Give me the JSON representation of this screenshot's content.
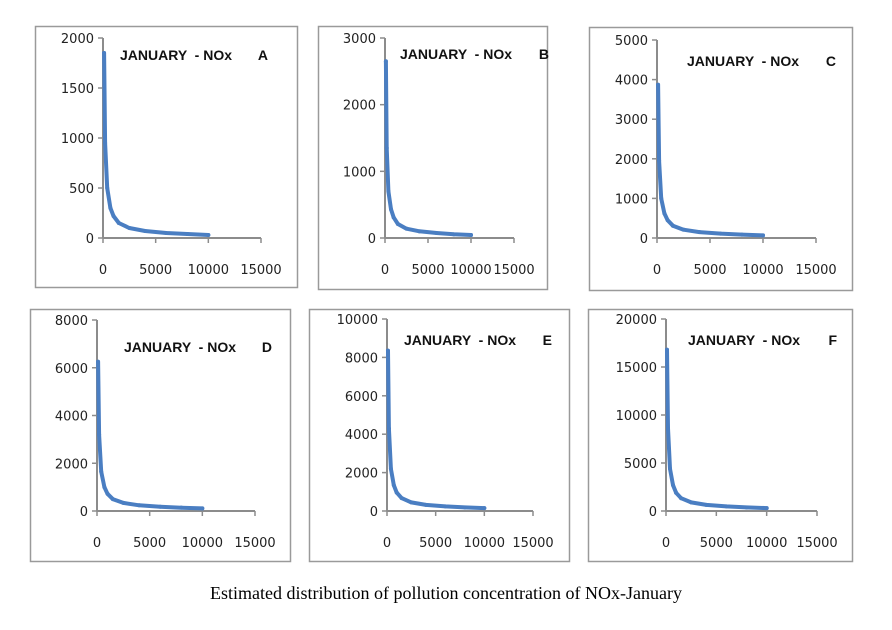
{
  "caption": "Estimated distribution of pollution concentration of NOx-January",
  "colors": {
    "series": "#4a7ec2",
    "axis": "#8c8c8c",
    "frame": "#9a9a9a"
  },
  "chart_data": [
    {
      "type": "line",
      "panel": "A",
      "title": "JANUARY  - NOx",
      "letter": "A",
      "xlim": [
        0,
        15000
      ],
      "ylim": [
        0,
        2000
      ],
      "xticks": [
        "0",
        "5000",
        "10000",
        "15000"
      ],
      "xtick_values": [
        0,
        5000,
        10000,
        15000
      ],
      "yticks": [
        "0",
        "500",
        "1000",
        "1500",
        "2000"
      ],
      "ytick_values": [
        0,
        500,
        1000,
        1500,
        2000
      ],
      "x": [
        100,
        200,
        400,
        700,
        1000,
        1500,
        2500,
        4000,
        6000,
        8000,
        10000
      ],
      "y": [
        1850,
        950,
        500,
        300,
        220,
        150,
        100,
        70,
        50,
        40,
        30
      ]
    },
    {
      "type": "line",
      "panel": "B",
      "title": "JANUARY  - NOx",
      "letter": "B",
      "xlim": [
        0,
        15000
      ],
      "ylim": [
        0,
        3000
      ],
      "xticks": [
        "0",
        "5000",
        "10000",
        "15000"
      ],
      "xtick_values": [
        0,
        5000,
        10000,
        15000
      ],
      "yticks": [
        "0",
        "1000",
        "2000",
        "3000"
      ],
      "ytick_values": [
        0,
        1000,
        2000,
        3000
      ],
      "x": [
        100,
        200,
        400,
        700,
        1000,
        1500,
        2500,
        4000,
        6000,
        8000,
        10000
      ],
      "y": [
        2650,
        1350,
        700,
        430,
        310,
        210,
        140,
        100,
        75,
        55,
        45
      ]
    },
    {
      "type": "line",
      "panel": "C",
      "title": "JANUARY  - NOx",
      "letter": "C",
      "xlim": [
        0,
        15000
      ],
      "ylim": [
        0,
        5000
      ],
      "xticks": [
        "0",
        "5000",
        "10000",
        "15000"
      ],
      "xtick_values": [
        0,
        5000,
        10000,
        15000
      ],
      "yticks": [
        "0",
        "1000",
        "2000",
        "3000",
        "4000",
        "5000"
      ],
      "ytick_values": [
        0,
        1000,
        2000,
        3000,
        4000,
        5000
      ],
      "x": [
        100,
        200,
        400,
        700,
        1000,
        1500,
        2500,
        4000,
        6000,
        8000,
        10000
      ],
      "y": [
        3870,
        1950,
        1000,
        620,
        450,
        310,
        210,
        150,
        110,
        85,
        65
      ]
    },
    {
      "type": "line",
      "panel": "D",
      "title": "JANUARY  - NOx",
      "letter": "D",
      "xlim": [
        0,
        15000
      ],
      "ylim": [
        0,
        8000
      ],
      "xticks": [
        "0",
        "5000",
        "10000",
        "15000"
      ],
      "xtick_values": [
        0,
        5000,
        10000,
        15000
      ],
      "yticks": [
        "0",
        "2000",
        "4000",
        "6000",
        "8000"
      ],
      "ytick_values": [
        0,
        2000,
        4000,
        6000,
        8000
      ],
      "x": [
        100,
        200,
        400,
        700,
        1000,
        1500,
        2500,
        4000,
        6000,
        8000,
        10000
      ],
      "y": [
        6250,
        3200,
        1650,
        1000,
        720,
        500,
        340,
        240,
        180,
        140,
        110
      ]
    },
    {
      "type": "line",
      "panel": "E",
      "title": "JANUARY  - NOx",
      "letter": "E",
      "xlim": [
        0,
        15000
      ],
      "ylim": [
        0,
        10000
      ],
      "xticks": [
        "0",
        "5000",
        "10000",
        "15000"
      ],
      "xtick_values": [
        0,
        5000,
        10000,
        15000
      ],
      "yticks": [
        "0",
        "2000",
        "4000",
        "6000",
        "8000",
        "10000"
      ],
      "ytick_values": [
        0,
        2000,
        4000,
        6000,
        8000,
        10000
      ],
      "x": [
        100,
        200,
        400,
        700,
        1000,
        1500,
        2500,
        4000,
        6000,
        8000,
        10000
      ],
      "y": [
        8350,
        4300,
        2200,
        1350,
        960,
        670,
        450,
        320,
        240,
        185,
        150
      ]
    },
    {
      "type": "line",
      "panel": "F",
      "title": "JANUARY  - NOx",
      "letter": "F",
      "xlim": [
        0,
        15000
      ],
      "ylim": [
        0,
        20000
      ],
      "xticks": [
        "0",
        "5000",
        "10000",
        "15000"
      ],
      "xtick_values": [
        0,
        5000,
        10000,
        15000
      ],
      "yticks": [
        "0",
        "5000",
        "10000",
        "15000",
        "20000"
      ],
      "ytick_values": [
        0,
        5000,
        10000,
        15000,
        20000
      ],
      "x": [
        100,
        200,
        400,
        700,
        1000,
        1500,
        2500,
        4000,
        6000,
        8000,
        10000
      ],
      "y": [
        16800,
        8600,
        4400,
        2700,
        1900,
        1330,
        900,
        640,
        480,
        370,
        300
      ]
    }
  ]
}
